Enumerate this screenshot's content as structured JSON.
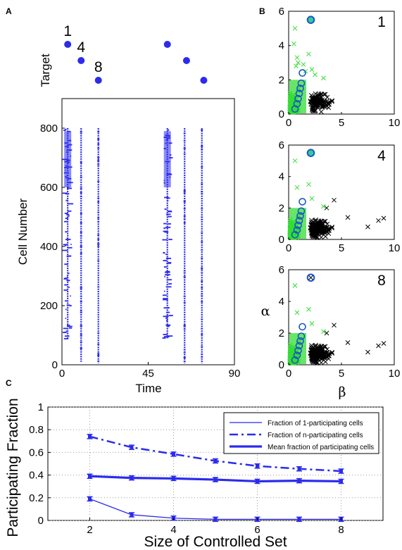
{
  "panels": {
    "a": "A",
    "b": "B",
    "c": "C"
  },
  "colors": {
    "blue": "#2b2bee",
    "green": "#33dd33",
    "black": "#000000",
    "circle": "#1a57c8"
  },
  "chart_data": [
    {
      "panel": "A",
      "type": "scatter",
      "target_label": "Target",
      "target_points": [
        {
          "x": 3,
          "level": 1,
          "label": "1"
        },
        {
          "x": 10,
          "level": 2,
          "label": "4"
        },
        {
          "x": 19,
          "level": 3,
          "label": "8"
        },
        {
          "x": 55,
          "level": 1,
          "label": ""
        },
        {
          "x": 65,
          "level": 2,
          "label": ""
        },
        {
          "x": 74,
          "level": 3,
          "label": ""
        }
      ],
      "raster_columns": [
        {
          "x": 3,
          "ymin": 90,
          "ymax": 800,
          "band": true
        },
        {
          "x": 10,
          "ymin": 10,
          "ymax": 800,
          "band": false
        },
        {
          "x": 19,
          "ymin": 5,
          "ymax": 800,
          "band": false
        },
        {
          "x": 55,
          "ymin": 90,
          "ymax": 800,
          "band": true
        },
        {
          "x": 64,
          "ymin": 5,
          "ymax": 800,
          "band": false
        },
        {
          "x": 73,
          "ymin": 5,
          "ymax": 800,
          "band": false
        }
      ],
      "xlabel": "Time",
      "ylabel": "Cell Number",
      "xticks": [
        "0",
        "45",
        "90"
      ],
      "yticks": [
        "0",
        "200",
        "400",
        "600",
        "800"
      ],
      "xlim": [
        0,
        90
      ],
      "ylim": [
        0,
        900
      ]
    },
    {
      "panel": "B",
      "type": "scatter",
      "xlabel": "β",
      "ylabel": "α",
      "xticks": [
        "0",
        "5",
        "10"
      ],
      "yticks": [
        "0",
        "2",
        "4",
        "6"
      ],
      "xlim": [
        0,
        10
      ],
      "ylim": [
        0,
        6
      ],
      "subplots": [
        {
          "label": "1",
          "marker": {
            "x": 2.1,
            "y": 5.5,
            "style": "filled"
          }
        },
        {
          "label": "4",
          "marker": {
            "x": 2.1,
            "y": 5.5,
            "style": "filled"
          }
        },
        {
          "label": "8",
          "marker": {
            "x": 2.1,
            "y": 5.5,
            "style": "cross"
          }
        }
      ],
      "circles": [
        {
          "x": 0.6,
          "y": 0.3
        },
        {
          "x": 0.8,
          "y": 0.6
        },
        {
          "x": 0.9,
          "y": 0.9
        },
        {
          "x": 1.0,
          "y": 1.2
        },
        {
          "x": 1.1,
          "y": 1.5
        },
        {
          "x": 1.2,
          "y": 1.8
        },
        {
          "x": 1.3,
          "y": 2.4
        }
      ]
    },
    {
      "panel": "C",
      "type": "line",
      "xlabel": "Size of Controlled Set",
      "ylabel": "Participating Fraction",
      "xticks": [
        "2",
        "4",
        "6",
        "8"
      ],
      "yticks": [
        "0",
        "0.2",
        "0.4",
        "0.6",
        "0.8",
        "1"
      ],
      "xlim": [
        1,
        9
      ],
      "ylim": [
        0,
        1
      ],
      "grid": true,
      "legend_position": "top-right",
      "x": [
        2,
        3,
        4,
        5,
        6,
        7,
        8
      ],
      "series": [
        {
          "name": "Fraction of 1-participating cells",
          "style": "thin",
          "values": [
            0.19,
            0.05,
            0.02,
            0.01,
            0.01,
            0.01,
            0.01
          ]
        },
        {
          "name": "Fraction of n-participating cells",
          "style": "dashdot",
          "values": [
            0.74,
            0.645,
            0.585,
            0.525,
            0.48,
            0.455,
            0.435
          ]
        },
        {
          "name": "Mean fraction of participating cells",
          "style": "thick",
          "values": [
            0.39,
            0.375,
            0.37,
            0.36,
            0.345,
            0.35,
            0.345
          ]
        }
      ]
    }
  ]
}
